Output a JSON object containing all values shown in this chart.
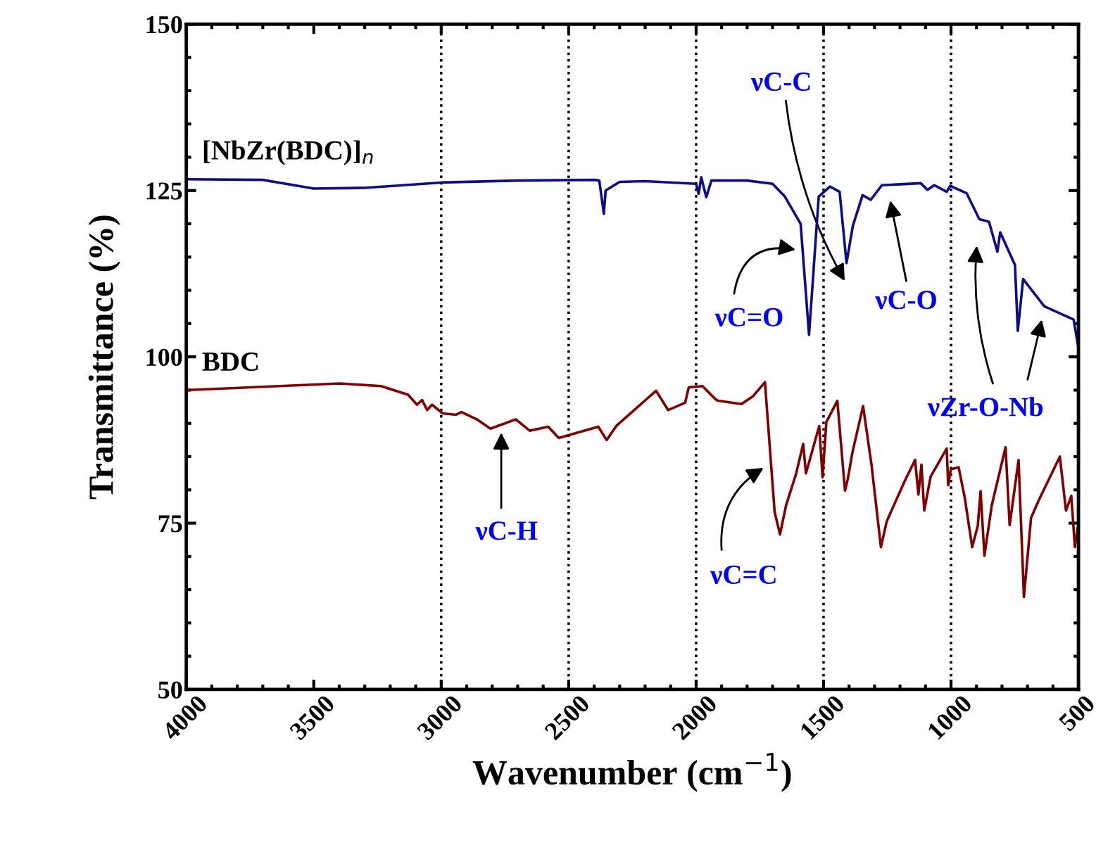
{
  "chart_data": {
    "type": "line",
    "xlabel": "Wavenumber (cm$^{−1}$)",
    "ylabel": "Transmittance (%)",
    "xlim": [
      4000,
      500
    ],
    "xticks": [
      4000,
      3500,
      3000,
      2500,
      2000,
      1500,
      1000,
      500
    ],
    "ylim": [
      50,
      150
    ],
    "yticks": [
      50,
      75,
      100,
      125,
      150
    ],
    "grid": false,
    "legend": false,
    "line_style": "solid",
    "marker": "none",
    "series": [
      {
        "name": "[NbZr(BDC)]$_{n}$",
        "color": "#0d0d8a",
        "x": [
          4000,
          3700,
          3500,
          3300,
          3000,
          2700,
          2400,
          2380,
          2362,
          2355,
          2300,
          2200,
          2000,
          1990,
          1980,
          1960,
          1940,
          1800,
          1700,
          1652,
          1590,
          1557,
          1519,
          1475,
          1437,
          1410,
          1385,
          1347,
          1315,
          1271,
          1119,
          1092,
          1066,
          1017,
          1003,
          939,
          889,
          851,
          818,
          807,
          749,
          738,
          717,
          634,
          559,
          519,
          500
        ],
        "values": [
          126.7,
          126.6,
          125.3,
          125.4,
          126.2,
          126.5,
          126.6,
          126.5,
          121.5,
          125,
          126.3,
          126.4,
          126,
          124.5,
          127,
          124,
          126.5,
          126.5,
          126,
          124.1,
          120,
          103.3,
          124.1,
          125.6,
          124.8,
          114.1,
          119.7,
          124.3,
          123.6,
          125.8,
          126.1,
          125.1,
          125.8,
          124.8,
          125.7,
          124.6,
          120.7,
          120.3,
          115.8,
          118.7,
          113.8,
          103.9,
          111.7,
          107.6,
          106.3,
          105.6,
          101.3
        ]
      },
      {
        "name": "BDC",
        "color": "#800000",
        "x": [
          4000,
          3398,
          3236,
          3130,
          3095,
          3075,
          3055,
          3036,
          2994,
          2942,
          2921,
          2860,
          2807,
          2707,
          2653,
          2580,
          2539,
          2384,
          2351,
          2311,
          2157,
          2110,
          2043,
          2029,
          1975,
          1923,
          1914,
          1822,
          1776,
          1730,
          1692,
          1671,
          1647,
          1608,
          1580,
          1569,
          1517,
          1504,
          1489,
          1446,
          1416,
          1405,
          1387,
          1345,
          1312,
          1275,
          1252,
          1182,
          1141,
          1128,
          1116,
          1105,
          1080,
          1017,
          1011,
          1001,
          970,
          946,
          917,
          895,
          884,
          869,
          840,
          786,
          770,
          735,
          714,
          686,
          655,
          573,
          549,
          528,
          514,
          500
        ],
        "values": [
          95.0,
          96.0,
          95.6,
          94.3,
          92.8,
          93.5,
          92.0,
          92.8,
          91.5,
          91.3,
          91.7,
          90.6,
          89.2,
          90.6,
          88.9,
          89.5,
          87.8,
          89.5,
          87.5,
          89.7,
          94.9,
          92.0,
          93.1,
          95.4,
          95.6,
          93.6,
          93.4,
          92.9,
          94.1,
          96.2,
          76.7,
          73.3,
          77.7,
          82.4,
          86.9,
          82.5,
          89.6,
          81.9,
          90.2,
          93.4,
          79.9,
          81.6,
          85.6,
          92.6,
          83.8,
          71.4,
          75.3,
          81.3,
          84.5,
          79.3,
          83.8,
          76.9,
          82.0,
          86.2,
          80.7,
          83.1,
          83.4,
          78.8,
          71.4,
          74.6,
          79.8,
          70.1,
          77.7,
          86.4,
          74.7,
          84.5,
          63.9,
          75.8,
          78.5,
          85.0,
          76.9,
          79.1,
          71.4,
          74.9
        ]
      }
    ],
    "ref_lines": [
      {
        "axis": "x",
        "value": 3000,
        "color": "#000000",
        "line_style": "dotted"
      },
      {
        "axis": "x",
        "value": 2500,
        "color": "#000000",
        "line_style": "dotted"
      },
      {
        "axis": "x",
        "value": 2000,
        "color": "#000000",
        "line_style": "dotted"
      },
      {
        "axis": "x",
        "value": 1500,
        "color": "#000000",
        "line_style": "dotted"
      },
      {
        "axis": "x",
        "value": 1000,
        "color": "#000000",
        "line_style": "dotted"
      }
    ],
    "annotations": [
      "νC=O",
      "νC-C",
      "νC-O",
      "νC-H",
      "νC=C",
      "νZr-O-Nb"
    ]
  }
}
